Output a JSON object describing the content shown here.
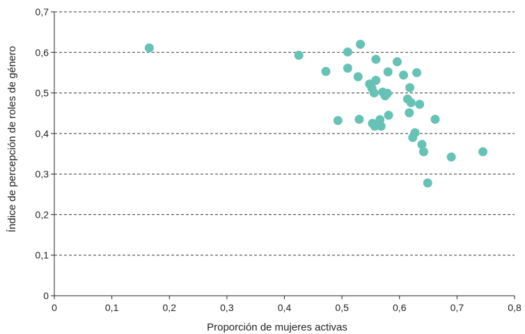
{
  "chart_data": {
    "type": "scatter",
    "title": "",
    "xlabel": "Proporción de mujeres activas",
    "ylabel": "Índice de percepción de roles de género",
    "xlim": [
      0,
      0.8
    ],
    "ylim": [
      0,
      0.7
    ],
    "x_ticks": [
      0,
      0.1,
      0.2,
      0.3,
      0.4,
      0.5,
      0.6,
      0.7,
      0.8
    ],
    "x_tick_labels": [
      "0",
      "0,1",
      "0,2",
      "0,3",
      "0,4",
      "0,5",
      "0,6",
      "0,7",
      "0,8"
    ],
    "y_ticks": [
      0,
      0.1,
      0.2,
      0.3,
      0.4,
      0.5,
      0.6,
      0.7
    ],
    "y_tick_labels": [
      "0",
      "0,1",
      "0,2",
      "0,3",
      "0,4",
      "0,5",
      "0,6",
      "0,7"
    ],
    "grid": "horizontal dashed",
    "marker_color": "#66c2b5",
    "points": [
      {
        "x": 0.165,
        "y": 0.611
      },
      {
        "x": 0.425,
        "y": 0.593
      },
      {
        "x": 0.472,
        "y": 0.553
      },
      {
        "x": 0.493,
        "y": 0.432
      },
      {
        "x": 0.51,
        "y": 0.601
      },
      {
        "x": 0.51,
        "y": 0.561
      },
      {
        "x": 0.528,
        "y": 0.54
      },
      {
        "x": 0.53,
        "y": 0.435
      },
      {
        "x": 0.532,
        "y": 0.62
      },
      {
        "x": 0.548,
        "y": 0.522
      },
      {
        "x": 0.552,
        "y": 0.512
      },
      {
        "x": 0.553,
        "y": 0.425
      },
      {
        "x": 0.556,
        "y": 0.5
      },
      {
        "x": 0.557,
        "y": 0.418
      },
      {
        "x": 0.559,
        "y": 0.531
      },
      {
        "x": 0.559,
        "y": 0.583
      },
      {
        "x": 0.566,
        "y": 0.434
      },
      {
        "x": 0.568,
        "y": 0.418
      },
      {
        "x": 0.571,
        "y": 0.502
      },
      {
        "x": 0.575,
        "y": 0.493
      },
      {
        "x": 0.579,
        "y": 0.499
      },
      {
        "x": 0.58,
        "y": 0.552
      },
      {
        "x": 0.581,
        "y": 0.445
      },
      {
        "x": 0.596,
        "y": 0.577
      },
      {
        "x": 0.607,
        "y": 0.544
      },
      {
        "x": 0.614,
        "y": 0.485
      },
      {
        "x": 0.617,
        "y": 0.451
      },
      {
        "x": 0.618,
        "y": 0.513
      },
      {
        "x": 0.62,
        "y": 0.476
      },
      {
        "x": 0.623,
        "y": 0.39
      },
      {
        "x": 0.627,
        "y": 0.402
      },
      {
        "x": 0.63,
        "y": 0.55
      },
      {
        "x": 0.635,
        "y": 0.472
      },
      {
        "x": 0.639,
        "y": 0.373
      },
      {
        "x": 0.642,
        "y": 0.355
      },
      {
        "x": 0.649,
        "y": 0.278
      },
      {
        "x": 0.662,
        "y": 0.435
      },
      {
        "x": 0.69,
        "y": 0.342
      },
      {
        "x": 0.745,
        "y": 0.355
      }
    ]
  }
}
